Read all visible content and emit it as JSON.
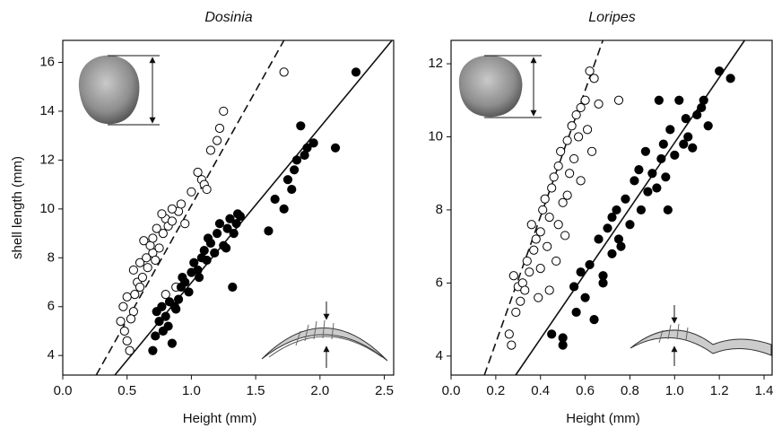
{
  "chart_data": [
    {
      "type": "scatter",
      "title": "Dosinia",
      "xlabel": "Height (mm)",
      "ylabel": "shell length (mm)",
      "xlim": [
        0,
        2.58
      ],
      "ylim": [
        3.2,
        16.9
      ],
      "xticks": [
        {
          "value": 0,
          "label": "0.0"
        },
        0.5,
        {
          "value": 1,
          "label": "1.0"
        },
        1.5,
        {
          "value": 2,
          "label": "2.0"
        },
        2.5
      ],
      "yticks": [
        4,
        6,
        8,
        10,
        12,
        14,
        16
      ],
      "series": [
        {
          "marker": "open",
          "color": "#000000",
          "x": [
            0.45,
            0.48,
            0.5,
            0.52,
            0.55,
            0.47,
            0.5,
            0.53,
            0.56,
            0.58,
            0.6,
            0.55,
            0.62,
            0.6,
            0.65,
            0.63,
            0.66,
            0.7,
            0.68,
            0.72,
            0.7,
            0.75,
            0.73,
            0.78,
            0.8,
            0.77,
            0.82,
            0.85,
            0.8,
            0.88,
            0.9,
            0.85,
            0.92,
            0.95,
            1.0,
            1.05,
            1.08,
            1.1,
            1.12,
            1.15,
            1.2,
            1.22,
            1.25,
            1.72
          ],
          "values": [
            5.4,
            5.0,
            4.6,
            4.2,
            5.8,
            6.0,
            6.4,
            5.5,
            6.5,
            7.0,
            6.8,
            7.5,
            7.2,
            7.8,
            8.0,
            8.7,
            7.6,
            8.2,
            8.5,
            7.9,
            8.8,
            8.4,
            9.2,
            9.0,
            9.6,
            9.8,
            9.3,
            9.5,
            6.5,
            6.8,
            9.9,
            10.0,
            10.2,
            9.4,
            10.7,
            11.5,
            11.2,
            11.0,
            10.8,
            12.4,
            12.8,
            13.3,
            14.0,
            15.6
          ]
        },
        {
          "marker": "filled",
          "color": "#000000",
          "x": [
            0.7,
            0.72,
            0.75,
            0.78,
            0.8,
            0.82,
            0.85,
            0.73,
            0.77,
            0.83,
            0.88,
            0.9,
            0.92,
            0.95,
            0.98,
            1.0,
            0.87,
            0.93,
            1.02,
            1.05,
            1.08,
            1.1,
            1.12,
            1.15,
            1.18,
            1.2,
            1.06,
            1.13,
            1.22,
            1.25,
            1.28,
            1.3,
            1.33,
            1.35,
            1.38,
            1.27,
            1.32,
            1.36,
            1.6,
            1.65,
            1.72,
            1.75,
            1.78,
            1.8,
            1.82,
            1.85,
            1.88,
            1.9,
            1.95,
            2.12,
            2.28
          ],
          "values": [
            4.2,
            4.8,
            5.4,
            5.0,
            5.6,
            5.2,
            4.5,
            5.8,
            6.0,
            6.2,
            5.9,
            6.3,
            6.8,
            7.0,
            6.6,
            7.4,
            6.0,
            7.2,
            7.8,
            7.5,
            8.0,
            8.3,
            7.9,
            8.6,
            8.2,
            9.0,
            7.2,
            8.8,
            9.4,
            8.5,
            9.2,
            9.6,
            9.0,
            9.4,
            9.7,
            8.4,
            6.8,
            9.8,
            9.1,
            10.4,
            10.0,
            11.2,
            10.8,
            11.6,
            12.0,
            13.4,
            12.2,
            12.5,
            12.7,
            12.5,
            15.6
          ]
        }
      ],
      "lines": [
        {
          "style": "dashed",
          "x": [
            0.26,
            1.72
          ],
          "y": [
            3.2,
            16.9
          ]
        },
        {
          "style": "solid",
          "x": [
            0.405,
            2.56
          ],
          "y": [
            3.2,
            16.9
          ]
        }
      ]
    },
    {
      "type": "scatter",
      "title": "Loripes",
      "xlabel": "Height (mm)",
      "xlim": [
        0,
        1.44
      ],
      "ylim": [
        3.48,
        12.64
      ],
      "xticks": [
        {
          "value": 0,
          "label": "0.0"
        },
        0.2,
        0.4,
        0.6,
        0.8,
        {
          "value": 1,
          "label": "1.0"
        },
        1.2,
        1.4
      ],
      "yticks": [
        4,
        6,
        8,
        10,
        12
      ],
      "series": [
        {
          "marker": "open",
          "color": "#000000",
          "x": [
            0.26,
            0.27,
            0.28,
            0.29,
            0.3,
            0.31,
            0.32,
            0.33,
            0.34,
            0.35,
            0.36,
            0.37,
            0.38,
            0.39,
            0.4,
            0.41,
            0.42,
            0.43,
            0.44,
            0.45,
            0.46,
            0.47,
            0.48,
            0.49,
            0.5,
            0.51,
            0.52,
            0.53,
            0.54,
            0.55,
            0.56,
            0.57,
            0.58,
            0.6,
            0.61,
            0.62,
            0.63,
            0.64,
            0.66,
            0.75,
            0.4,
            0.44,
            0.48,
            0.52,
            0.58
          ],
          "values": [
            4.6,
            4.3,
            6.2,
            5.2,
            5.9,
            5.5,
            6.0,
            5.8,
            6.6,
            6.3,
            7.6,
            6.9,
            7.2,
            5.6,
            7.4,
            8.0,
            8.3,
            7.0,
            7.8,
            8.6,
            8.9,
            6.6,
            9.2,
            9.6,
            8.2,
            7.3,
            9.9,
            9.0,
            10.3,
            9.4,
            10.6,
            10.0,
            10.8,
            11.0,
            10.2,
            11.8,
            9.6,
            11.6,
            10.9,
            11.0,
            6.4,
            5.8,
            7.6,
            8.4,
            8.8
          ]
        },
        {
          "marker": "filled",
          "color": "#000000",
          "x": [
            0.45,
            0.5,
            0.5,
            0.55,
            0.56,
            0.6,
            0.62,
            0.64,
            0.66,
            0.68,
            0.7,
            0.72,
            0.74,
            0.75,
            0.78,
            0.8,
            0.82,
            0.84,
            0.85,
            0.88,
            0.9,
            0.92,
            0.94,
            0.95,
            0.96,
            0.98,
            1.0,
            1.02,
            1.04,
            1.05,
            1.06,
            1.08,
            1.1,
            1.12,
            1.13,
            1.15,
            1.2,
            1.25,
            0.93,
            0.87,
            0.68,
            0.72,
            0.76,
            0.58,
            0.97
          ],
          "values": [
            4.6,
            4.3,
            4.5,
            5.9,
            5.2,
            5.6,
            6.5,
            5.0,
            7.2,
            6.0,
            7.5,
            6.8,
            8.0,
            7.2,
            8.3,
            7.6,
            8.8,
            9.1,
            8.0,
            8.5,
            9.0,
            8.6,
            9.4,
            9.8,
            8.9,
            10.2,
            9.5,
            11.0,
            9.8,
            10.5,
            10.0,
            9.7,
            10.6,
            10.8,
            11.0,
            10.3,
            11.8,
            11.6,
            11.0,
            9.6,
            6.2,
            7.8,
            7.0,
            6.3,
            8.0
          ]
        }
      ],
      "lines": [
        {
          "style": "dashed",
          "x": [
            0.149,
            0.679
          ],
          "y": [
            3.48,
            12.64
          ]
        },
        {
          "style": "solid",
          "x": [
            0.289,
            1.313
          ],
          "y": [
            3.48,
            12.64
          ]
        }
      ]
    }
  ]
}
